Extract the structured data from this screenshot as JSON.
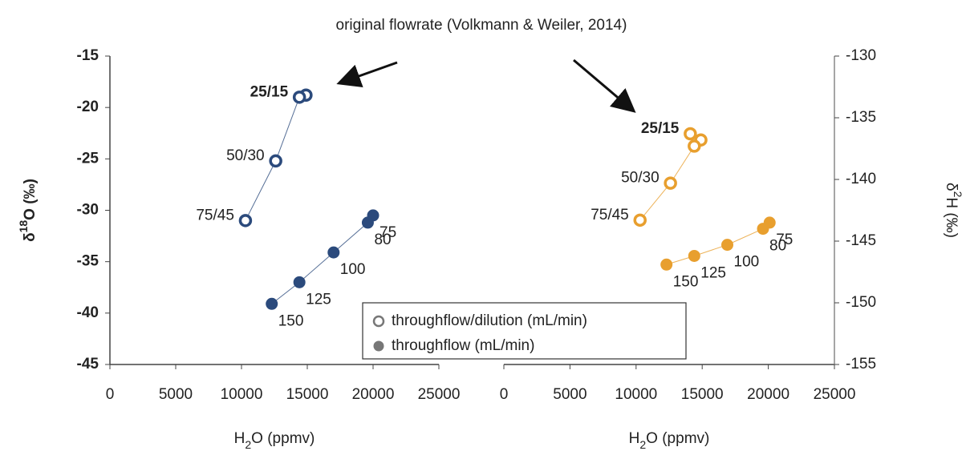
{
  "annotation": "original flowrate (Volkmann & Weiler, 2014)",
  "chart_data": [
    {
      "type": "scatter",
      "yaxis": "left",
      "color": "#2b4a7c",
      "ylabel_parts": [
        "δ",
        "18",
        "O (‰)"
      ],
      "xlabel_parts": [
        "H",
        "2",
        "O (ppmv)"
      ],
      "xlim": [
        0,
        25000
      ],
      "xticks": [
        0,
        5000,
        10000,
        15000,
        20000,
        25000
      ],
      "ylim": [
        -45,
        -15
      ],
      "yticks": [
        -45,
        -40,
        -35,
        -30,
        -25,
        -20,
        -15
      ],
      "series": [
        {
          "name": "throughflow/dilution (mL/min)",
          "marker": "open",
          "x": [
            14900,
            14400,
            12600,
            10300
          ],
          "values": [
            -18.8,
            -19,
            -25.2,
            -31
          ],
          "point_labels": [
            null,
            "25/15",
            "50/30",
            "75/45"
          ]
        },
        {
          "name": "throughflow (mL/min)",
          "marker": "filled",
          "x": [
            20000,
            19600,
            17000,
            14400,
            12300
          ],
          "values": [
            -30.5,
            -31.2,
            -34.1,
            -37,
            -39.1
          ],
          "point_labels": [
            "75",
            "80",
            "100",
            "125",
            "150"
          ]
        }
      ]
    },
    {
      "type": "scatter",
      "yaxis": "right",
      "color": "#e89f2e",
      "ylabel_parts": [
        "δ",
        "2",
        "H (‰)"
      ],
      "xlabel_parts": [
        "H",
        "2",
        "O (ppmv)"
      ],
      "xlim": [
        0,
        25000
      ],
      "xticks": [
        0,
        5000,
        10000,
        15000,
        20000,
        25000
      ],
      "ylim": [
        -155,
        -130
      ],
      "yticks": [
        -155,
        -150,
        -145,
        -140,
        -135,
        -130
      ],
      "series": [
        {
          "marker": "open",
          "x": [
            14900,
            14100,
            14400,
            12600,
            10300
          ],
          "values": [
            -136.8,
            -136.3,
            -137.3,
            -140.3,
            -143.3
          ],
          "point_labels": [
            null,
            "25/15",
            null,
            "50/30",
            "75/45"
          ]
        },
        {
          "marker": "filled",
          "x": [
            20100,
            19600,
            16900,
            14400,
            12300
          ],
          "values": [
            -143.5,
            -144,
            -145.3,
            -146.2,
            -146.9
          ],
          "point_labels": [
            "75",
            "80",
            "100",
            "125",
            "150"
          ]
        }
      ]
    }
  ]
}
